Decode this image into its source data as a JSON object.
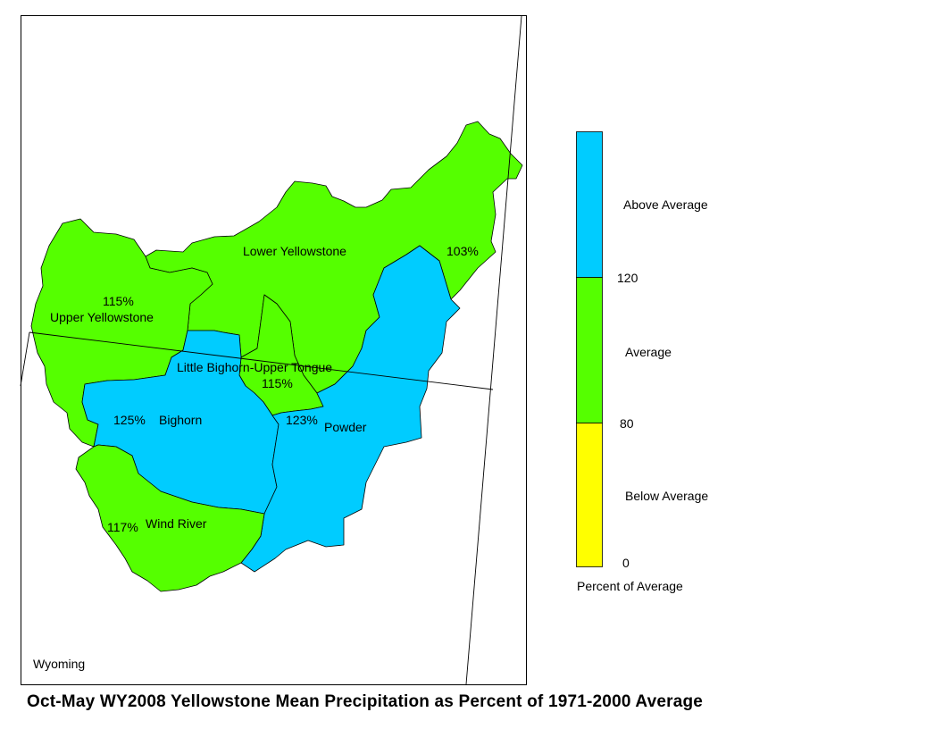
{
  "title": "Oct-May WY2008 Yellowstone Mean Precipitation as Percent of 1971-2000 Average",
  "state_label": "Wyoming",
  "colors": {
    "above": "#00ccff",
    "average": "#55ff00",
    "below": "#ffff00"
  },
  "basins": [
    {
      "name": "Lower Yellowstone",
      "percent": "103%",
      "category": "average"
    },
    {
      "name": "Upper Yellowstone",
      "percent": "115%",
      "category": "average"
    },
    {
      "name": "Little Bighorn-Upper Tongue",
      "percent": "115%",
      "category": "average"
    },
    {
      "name": "Bighorn",
      "percent": "125%",
      "category": "above"
    },
    {
      "name": "Powder",
      "percent": "123%",
      "category": "above"
    },
    {
      "name": "Wind River",
      "percent": "117%",
      "category": "average"
    }
  ],
  "legend": {
    "title": "Percent of Average",
    "classes": [
      {
        "label": "Above Average",
        "category": "above"
      },
      {
        "label": "Average",
        "category": "average"
      },
      {
        "label": "Below Average",
        "category": "below"
      }
    ],
    "breaks": [
      "120",
      "80",
      "0"
    ]
  }
}
